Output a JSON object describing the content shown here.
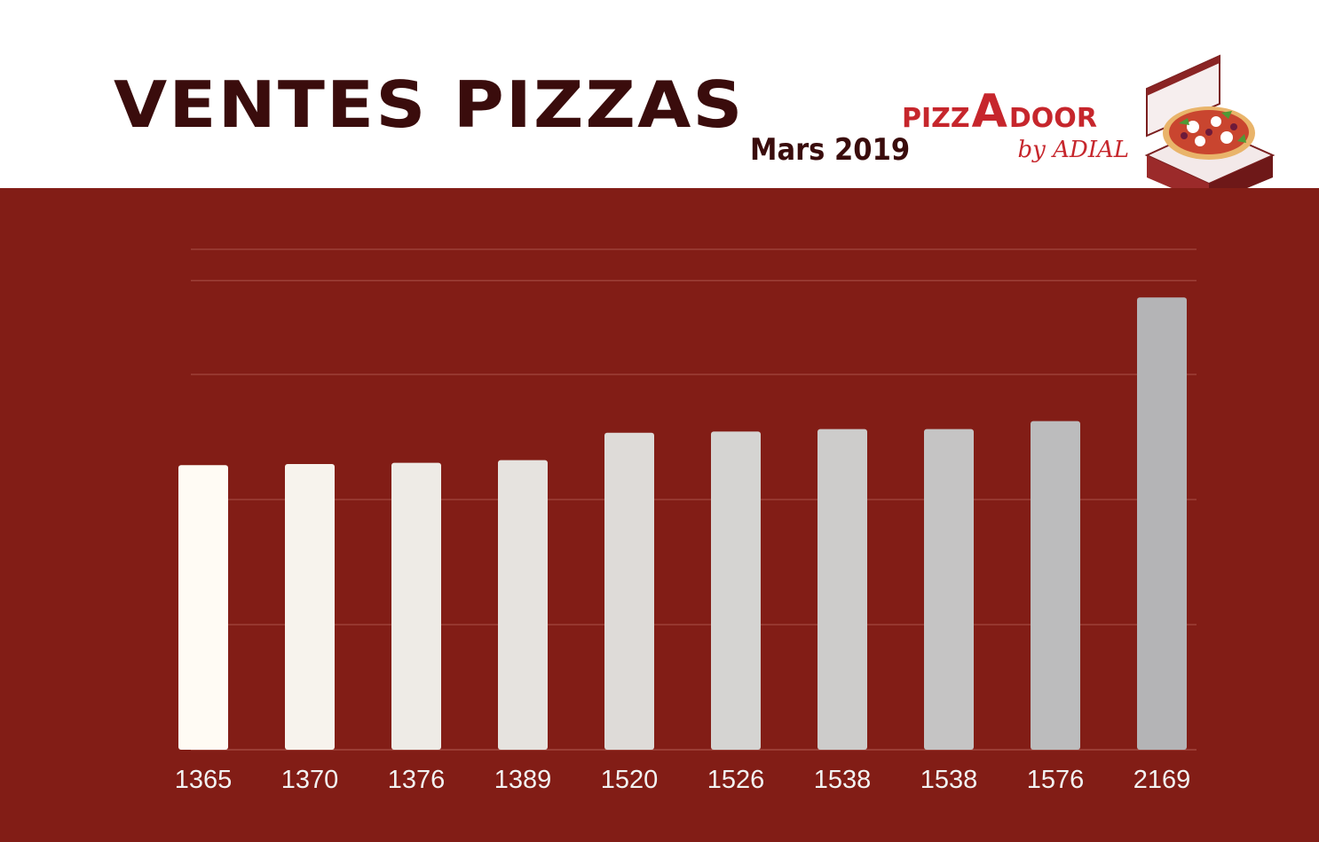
{
  "header": {
    "title": "VENTES PIZZAS",
    "subtitle": "Mars 2019"
  },
  "logo": {
    "icon": "pizza-box-icon",
    "text_before": "PIZZ",
    "text_accent": "A",
    "text_after": "DOOR",
    "byline": "by ADIAL"
  },
  "colors": {
    "background_panel": "#821d16",
    "title": "#3a0c0c",
    "logo_red": "#c6262c",
    "bar_first": "#fffbf4",
    "bar_last": "#b4b4b6",
    "grid": "#a2473f"
  },
  "chart_data": {
    "type": "bar",
    "categories": [
      "1365",
      "1370",
      "1376",
      "1389",
      "1520",
      "1526",
      "1538",
      "1538",
      "1576",
      "2169"
    ],
    "values": [
      1365,
      1370,
      1376,
      1389,
      1520,
      1526,
      1538,
      1538,
      1576,
      2169
    ],
    "title": "VENTES PIZZAS",
    "subtitle": "Mars 2019",
    "xlabel": "",
    "ylabel": "",
    "ylim": [
      0,
      2400
    ],
    "grid": true,
    "legend": "none"
  }
}
